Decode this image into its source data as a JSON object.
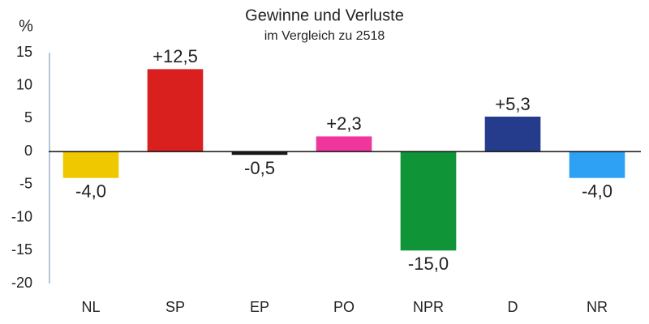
{
  "chart_data": {
    "type": "bar",
    "title": "Gewinne und Verluste",
    "subtitle": "im Vergleich zu 2518",
    "y_label": "%",
    "categories": [
      "NL",
      "SP",
      "EP",
      "PO",
      "NPR",
      "D",
      "NR"
    ],
    "values": [
      -4.0,
      12.5,
      -0.5,
      2.3,
      -15.0,
      5.3,
      -4.0
    ],
    "value_labels": [
      "-4,0",
      "+12,5",
      "-0,5",
      "+2,3",
      "-15,0",
      "+5,3",
      "-4,0"
    ],
    "colors": [
      "#f0c800",
      "#d9201f",
      "#1a1a1a",
      "#f0359c",
      "#0f9438",
      "#253c8c",
      "#2ea1f5"
    ],
    "ylim": [
      -20,
      15
    ],
    "yticks": [
      -20,
      -15,
      -10,
      -5,
      0,
      5,
      10,
      15
    ],
    "grid": false
  }
}
